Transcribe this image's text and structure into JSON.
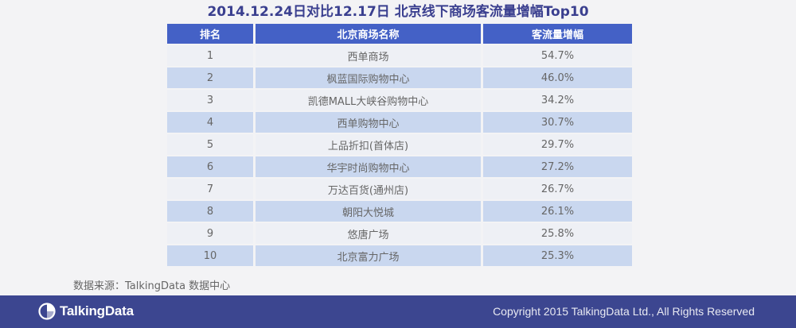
{
  "title": "2014.12.24日对比12.17日  北京线下商场客流量增幅Top10",
  "table": {
    "headers": [
      "排名",
      "北京商场名称",
      "客流量增幅"
    ],
    "rows": [
      [
        "1",
        "西单商场",
        "54.7%"
      ],
      [
        "2",
        "枫蓝国际购物中心",
        "46.0%"
      ],
      [
        "3",
        "凯德MALL大峡谷购物中心",
        "34.2%"
      ],
      [
        "4",
        "西单购物中心",
        "30.7%"
      ],
      [
        "5",
        "上品折扣(首体店)",
        "29.7%"
      ],
      [
        "6",
        "华宇时尚购物中心",
        "27.2%"
      ],
      [
        "7",
        "万达百货(通州店)",
        "26.7%"
      ],
      [
        "8",
        "朝阳大悦城",
        "26.1%"
      ],
      [
        "9",
        "悠唐广场",
        "25.8%"
      ],
      [
        "10",
        "北京富力广场",
        "25.3%"
      ]
    ]
  },
  "source": "数据来源：TalkingData 数据中心",
  "footer": {
    "brand": "TalkingData",
    "copyright": "Copyright 2015 TalkingData Ltd., All Rights Reserved",
    "logo_icon": "pie-chart-icon"
  },
  "colors": {
    "header_bg": "#4461c6",
    "row_light": "#eef0f5",
    "row_blue": "#c9d7ef",
    "footer_bg": "#3c4690",
    "title": "#3a3f8f"
  }
}
